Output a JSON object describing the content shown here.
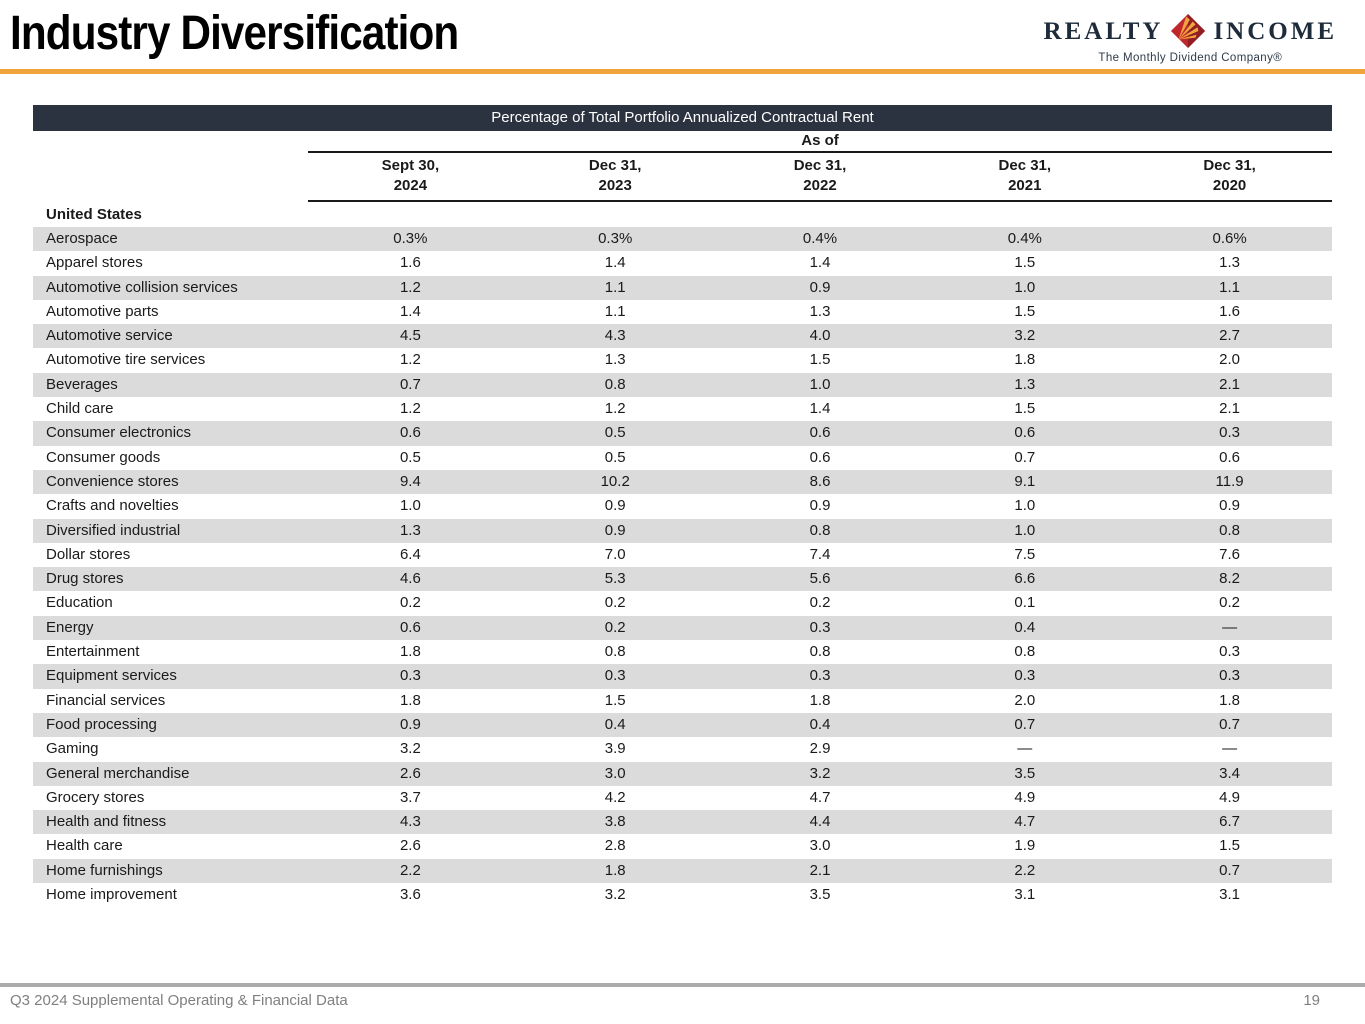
{
  "page": {
    "title": "Industry Diversification"
  },
  "logo": {
    "name_left": "REALTY",
    "name_right": "INCOME",
    "tagline": "The Monthly Dividend Company®",
    "colors": {
      "red": "#C0272D",
      "dark_red": "#921E24",
      "gold": "#F0A43E",
      "navy": "#1D2B3A"
    }
  },
  "colors": {
    "accent_orange": "#F2A43C",
    "caption_bar": "#2B3240",
    "row_stripe": "#DBDBDB",
    "footer_gray": "#7F7F7F"
  },
  "table": {
    "caption": "Percentage of Total Portfolio Annualized Contractual Rent",
    "as_of_label": "As of",
    "columns": [
      {
        "line1": "Sept 30,",
        "line2": "2024"
      },
      {
        "line1": "Dec 31,",
        "line2": "2023"
      },
      {
        "line1": "Dec 31,",
        "line2": "2022"
      },
      {
        "line1": "Dec 31,",
        "line2": "2021"
      },
      {
        "line1": "Dec 31,",
        "line2": "2020"
      }
    ],
    "section": "United States",
    "rows": [
      {
        "label": "Aerospace",
        "values": [
          "0.3%",
          "0.3%",
          "0.4%",
          "0.4%",
          "0.6%"
        ]
      },
      {
        "label": "Apparel stores",
        "values": [
          "1.6",
          "1.4",
          "1.4",
          "1.5",
          "1.3"
        ]
      },
      {
        "label": "Automotive collision services",
        "values": [
          "1.2",
          "1.1",
          "0.9",
          "1.0",
          "1.1"
        ]
      },
      {
        "label": "Automotive parts",
        "values": [
          "1.4",
          "1.1",
          "1.3",
          "1.5",
          "1.6"
        ]
      },
      {
        "label": "Automotive service",
        "values": [
          "4.5",
          "4.3",
          "4.0",
          "3.2",
          "2.7"
        ]
      },
      {
        "label": "Automotive tire services",
        "values": [
          "1.2",
          "1.3",
          "1.5",
          "1.8",
          "2.0"
        ]
      },
      {
        "label": "Beverages",
        "values": [
          "0.7",
          "0.8",
          "1.0",
          "1.3",
          "2.1"
        ]
      },
      {
        "label": "Child care",
        "values": [
          "1.2",
          "1.2",
          "1.4",
          "1.5",
          "2.1"
        ]
      },
      {
        "label": "Consumer electronics",
        "values": [
          "0.6",
          "0.5",
          "0.6",
          "0.6",
          "0.3"
        ]
      },
      {
        "label": "Consumer goods",
        "values": [
          "0.5",
          "0.5",
          "0.6",
          "0.7",
          "0.6"
        ]
      },
      {
        "label": "Convenience stores",
        "values": [
          "9.4",
          "10.2",
          "8.6",
          "9.1",
          "11.9"
        ]
      },
      {
        "label": "Crafts and novelties",
        "values": [
          "1.0",
          "0.9",
          "0.9",
          "1.0",
          "0.9"
        ]
      },
      {
        "label": "Diversified industrial",
        "values": [
          "1.3",
          "0.9",
          "0.8",
          "1.0",
          "0.8"
        ]
      },
      {
        "label": "Dollar stores",
        "values": [
          "6.4",
          "7.0",
          "7.4",
          "7.5",
          "7.6"
        ]
      },
      {
        "label": "Drug stores",
        "values": [
          "4.6",
          "5.3",
          "5.6",
          "6.6",
          "8.2"
        ]
      },
      {
        "label": "Education",
        "values": [
          "0.2",
          "0.2",
          "0.2",
          "0.1",
          "0.2"
        ]
      },
      {
        "label": "Energy",
        "values": [
          "0.6",
          "0.2",
          "0.3",
          "0.4",
          "—"
        ]
      },
      {
        "label": "Entertainment",
        "values": [
          "1.8",
          "0.8",
          "0.8",
          "0.8",
          "0.3"
        ]
      },
      {
        "label": "Equipment services",
        "values": [
          "0.3",
          "0.3",
          "0.3",
          "0.3",
          "0.3"
        ]
      },
      {
        "label": "Financial services",
        "values": [
          "1.8",
          "1.5",
          "1.8",
          "2.0",
          "1.8"
        ]
      },
      {
        "label": "Food processing",
        "values": [
          "0.9",
          "0.4",
          "0.4",
          "0.7",
          "0.7"
        ]
      },
      {
        "label": "Gaming",
        "values": [
          "3.2",
          "3.9",
          "2.9",
          "—",
          "—"
        ]
      },
      {
        "label": "General merchandise",
        "values": [
          "2.6",
          "3.0",
          "3.2",
          "3.5",
          "3.4"
        ]
      },
      {
        "label": "Grocery stores",
        "values": [
          "3.7",
          "4.2",
          "4.7",
          "4.9",
          "4.9"
        ]
      },
      {
        "label": "Health and fitness",
        "values": [
          "4.3",
          "3.8",
          "4.4",
          "4.7",
          "6.7"
        ]
      },
      {
        "label": "Health care",
        "values": [
          "2.6",
          "2.8",
          "3.0",
          "1.9",
          "1.5"
        ]
      },
      {
        "label": "Home furnishings",
        "values": [
          "2.2",
          "1.8",
          "2.1",
          "2.2",
          "0.7"
        ]
      },
      {
        "label": "Home improvement",
        "values": [
          "3.6",
          "3.2",
          "3.5",
          "3.1",
          "3.1"
        ]
      }
    ]
  },
  "footer": {
    "text": "Q3 2024 Supplemental Operating & Financial Data",
    "page_number": "19"
  }
}
